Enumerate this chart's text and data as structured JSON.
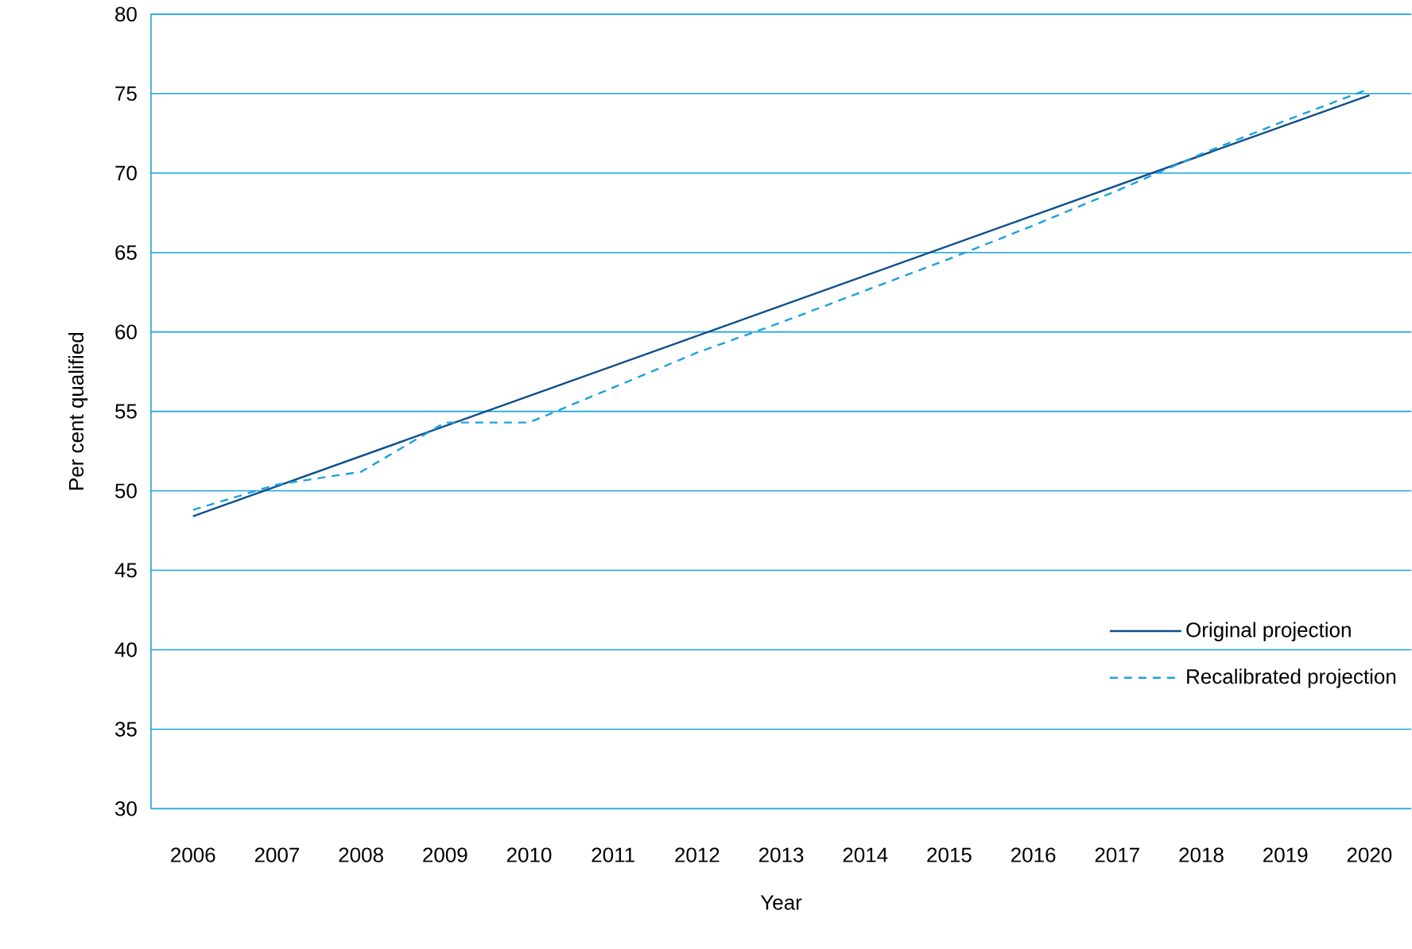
{
  "chart_data": {
    "type": "line",
    "xlabel": "Year",
    "ylabel": "Per cent qualified",
    "xlim": [
      2005.5,
      2020.5
    ],
    "ylim": [
      30,
      80
    ],
    "xticks": [
      2006,
      2007,
      2008,
      2009,
      2010,
      2011,
      2012,
      2013,
      2014,
      2015,
      2016,
      2017,
      2018,
      2019,
      2020
    ],
    "yticks": [
      30,
      35,
      40,
      45,
      50,
      55,
      60,
      65,
      70,
      75,
      80
    ],
    "grid": "y",
    "legend": "bottom right",
    "series": [
      {
        "name": "Original projection",
        "color": "#0d4f8b",
        "line_style": "solid",
        "x": [
          2006,
          2020
        ],
        "values": [
          48.4,
          74.9
        ]
      },
      {
        "name": "Recalibrated projection",
        "color": "#1ba1e2",
        "line_style": "dashed",
        "x": [
          2006,
          2007,
          2008,
          2009,
          2010,
          2011,
          2012,
          2013,
          2014,
          2015,
          2016,
          2017,
          2018,
          2019,
          2020
        ],
        "values": [
          48.8,
          50.4,
          51.2,
          54.3,
          54.3,
          56.5,
          58.7,
          60.6,
          62.6,
          64.6,
          66.7,
          68.9,
          71.2,
          73.3,
          75.3
        ]
      }
    ]
  }
}
